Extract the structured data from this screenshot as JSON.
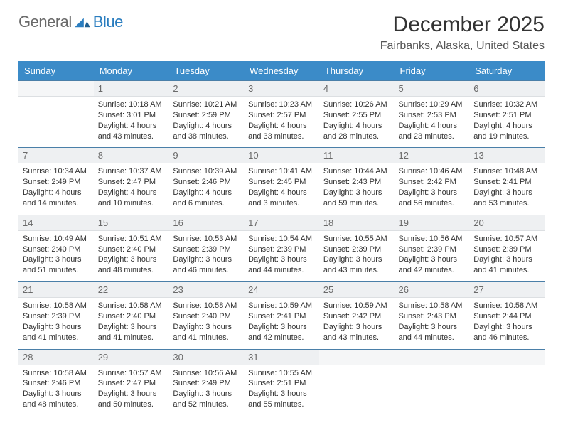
{
  "logo": {
    "general": "General",
    "blue": "Blue"
  },
  "title": "December 2025",
  "subtitle": "Fairbanks, Alaska, United States",
  "colors": {
    "header_bg": "#3b8bc8",
    "header_text": "#ffffff",
    "daynum_bg": "#eef0f2",
    "daynum_border_top": "#4a7fa8",
    "text": "#333333",
    "logo_gray": "#6a6a6a",
    "logo_blue": "#2a7dbf"
  },
  "dayNames": [
    "Sunday",
    "Monday",
    "Tuesday",
    "Wednesday",
    "Thursday",
    "Friday",
    "Saturday"
  ],
  "leadingBlanks": 1,
  "days": [
    {
      "n": 1,
      "sr": "10:18 AM",
      "ss": "3:01 PM",
      "dl": "4 hours and 43 minutes."
    },
    {
      "n": 2,
      "sr": "10:21 AM",
      "ss": "2:59 PM",
      "dl": "4 hours and 38 minutes."
    },
    {
      "n": 3,
      "sr": "10:23 AM",
      "ss": "2:57 PM",
      "dl": "4 hours and 33 minutes."
    },
    {
      "n": 4,
      "sr": "10:26 AM",
      "ss": "2:55 PM",
      "dl": "4 hours and 28 minutes."
    },
    {
      "n": 5,
      "sr": "10:29 AM",
      "ss": "2:53 PM",
      "dl": "4 hours and 23 minutes."
    },
    {
      "n": 6,
      "sr": "10:32 AM",
      "ss": "2:51 PM",
      "dl": "4 hours and 19 minutes."
    },
    {
      "n": 7,
      "sr": "10:34 AM",
      "ss": "2:49 PM",
      "dl": "4 hours and 14 minutes."
    },
    {
      "n": 8,
      "sr": "10:37 AM",
      "ss": "2:47 PM",
      "dl": "4 hours and 10 minutes."
    },
    {
      "n": 9,
      "sr": "10:39 AM",
      "ss": "2:46 PM",
      "dl": "4 hours and 6 minutes."
    },
    {
      "n": 10,
      "sr": "10:41 AM",
      "ss": "2:45 PM",
      "dl": "4 hours and 3 minutes."
    },
    {
      "n": 11,
      "sr": "10:44 AM",
      "ss": "2:43 PM",
      "dl": "3 hours and 59 minutes."
    },
    {
      "n": 12,
      "sr": "10:46 AM",
      "ss": "2:42 PM",
      "dl": "3 hours and 56 minutes."
    },
    {
      "n": 13,
      "sr": "10:48 AM",
      "ss": "2:41 PM",
      "dl": "3 hours and 53 minutes."
    },
    {
      "n": 14,
      "sr": "10:49 AM",
      "ss": "2:40 PM",
      "dl": "3 hours and 51 minutes."
    },
    {
      "n": 15,
      "sr": "10:51 AM",
      "ss": "2:40 PM",
      "dl": "3 hours and 48 minutes."
    },
    {
      "n": 16,
      "sr": "10:53 AM",
      "ss": "2:39 PM",
      "dl": "3 hours and 46 minutes."
    },
    {
      "n": 17,
      "sr": "10:54 AM",
      "ss": "2:39 PM",
      "dl": "3 hours and 44 minutes."
    },
    {
      "n": 18,
      "sr": "10:55 AM",
      "ss": "2:39 PM",
      "dl": "3 hours and 43 minutes."
    },
    {
      "n": 19,
      "sr": "10:56 AM",
      "ss": "2:39 PM",
      "dl": "3 hours and 42 minutes."
    },
    {
      "n": 20,
      "sr": "10:57 AM",
      "ss": "2:39 PM",
      "dl": "3 hours and 41 minutes."
    },
    {
      "n": 21,
      "sr": "10:58 AM",
      "ss": "2:39 PM",
      "dl": "3 hours and 41 minutes."
    },
    {
      "n": 22,
      "sr": "10:58 AM",
      "ss": "2:40 PM",
      "dl": "3 hours and 41 minutes."
    },
    {
      "n": 23,
      "sr": "10:58 AM",
      "ss": "2:40 PM",
      "dl": "3 hours and 41 minutes."
    },
    {
      "n": 24,
      "sr": "10:59 AM",
      "ss": "2:41 PM",
      "dl": "3 hours and 42 minutes."
    },
    {
      "n": 25,
      "sr": "10:59 AM",
      "ss": "2:42 PM",
      "dl": "3 hours and 43 minutes."
    },
    {
      "n": 26,
      "sr": "10:58 AM",
      "ss": "2:43 PM",
      "dl": "3 hours and 44 minutes."
    },
    {
      "n": 27,
      "sr": "10:58 AM",
      "ss": "2:44 PM",
      "dl": "3 hours and 46 minutes."
    },
    {
      "n": 28,
      "sr": "10:58 AM",
      "ss": "2:46 PM",
      "dl": "3 hours and 48 minutes."
    },
    {
      "n": 29,
      "sr": "10:57 AM",
      "ss": "2:47 PM",
      "dl": "3 hours and 50 minutes."
    },
    {
      "n": 30,
      "sr": "10:56 AM",
      "ss": "2:49 PM",
      "dl": "3 hours and 52 minutes."
    },
    {
      "n": 31,
      "sr": "10:55 AM",
      "ss": "2:51 PM",
      "dl": "3 hours and 55 minutes."
    }
  ],
  "labels": {
    "sunrise": "Sunrise: ",
    "sunset": "Sunset: ",
    "daylight": "Daylight: "
  }
}
